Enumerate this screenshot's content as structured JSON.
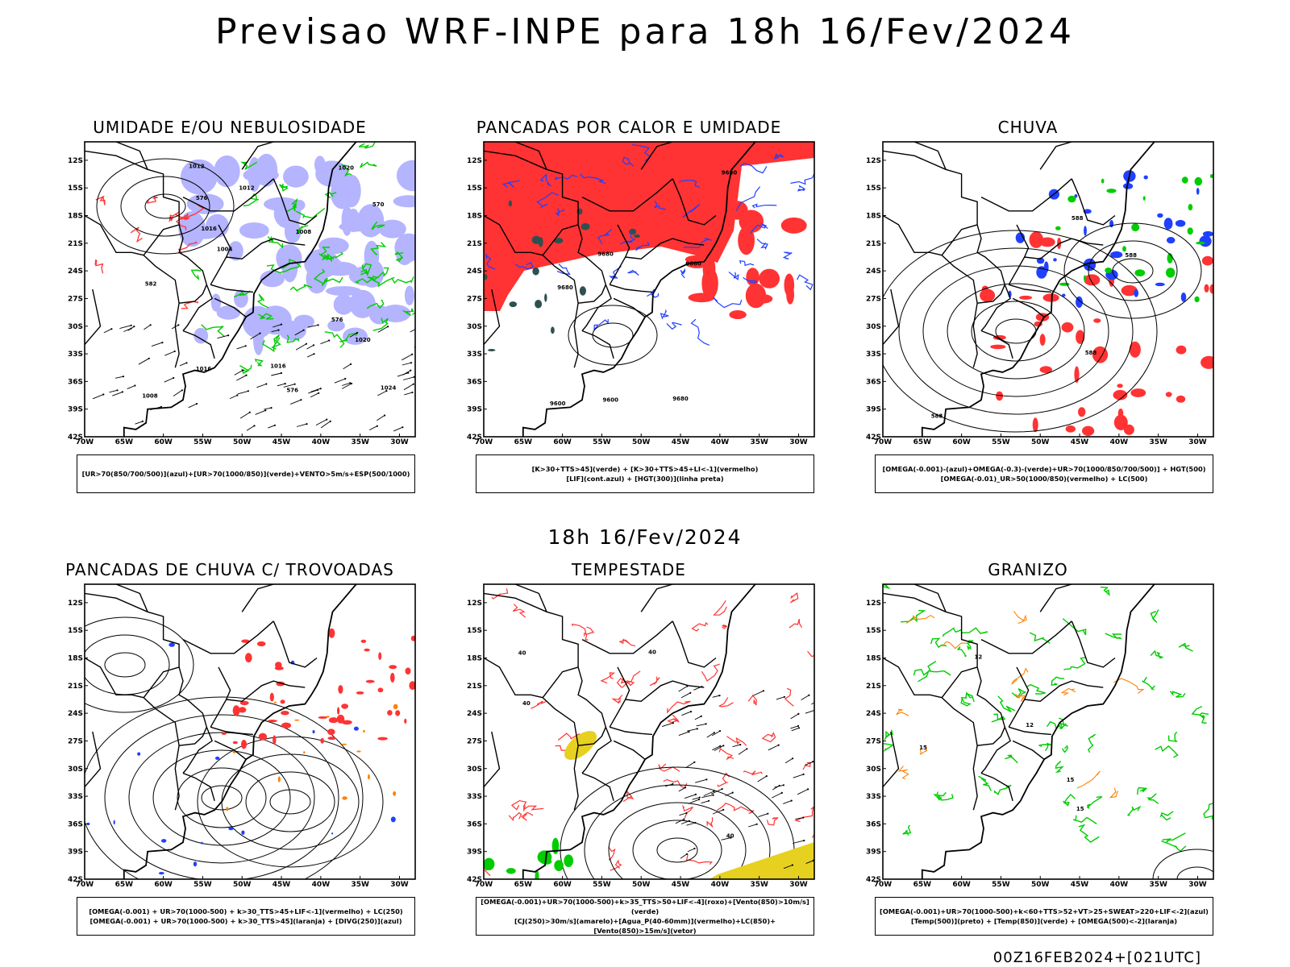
{
  "title": "Previsao WRF-INPE  para 18h 16/Fev/2024",
  "mid_title": "18h 16/Fev/2024",
  "footer": "00Z16FEB2024+[021UTC]",
  "lat_labels": [
    "12S",
    "15S",
    "18S",
    "21S",
    "24S",
    "27S",
    "30S",
    "33S",
    "36S",
    "39S",
    "42S"
  ],
  "lon_labels": [
    "70W",
    "65W",
    "60W",
    "55W",
    "50W",
    "45W",
    "40W",
    "35W",
    "30W"
  ],
  "panels": [
    {
      "title": "UMIDADE E/OU NEBULOSIDADE",
      "legend": [
        "[UR>70(850/700/500)](azul)+[UR>70(1000/850)](verde)+VENTO>5m/s+ESP(500/1000)"
      ],
      "labels": [
        "1008",
        "1012",
        "1012",
        "1016",
        "1016",
        "1016",
        "1020",
        "1020",
        "1024",
        "576",
        "576",
        "576",
        "570",
        "582",
        "1004",
        "1008"
      ]
    },
    {
      "title": "PANCADAS POR CALOR E UMIDADE",
      "legend": [
        "[K>30+TTS>45](verde) + [K>30+TTS>45+LI<-1](vermelho)",
        "[LIF](cont.azul) + [HGT(300)](linha preta)"
      ],
      "labels": [
        "9680",
        "9680",
        "9680",
        "9680",
        "9600",
        "9600",
        "9680"
      ]
    },
    {
      "title": "CHUVA",
      "legend": [
        "[OMEGA(-0.001)-(azul)+OMEGA(-0.3)-(verde)+UR>70(1000/850/700/500)] + HGT(500)",
        "[OMEGA(-0.01)_UR>50(1000/850)(vermelho) + LC(500)"
      ],
      "labels": [
        "588",
        "588",
        "588",
        "588"
      ]
    },
    {
      "title": "PANCADAS DE CHUVA C/ TROVOADAS",
      "legend": [
        "[OMEGA(-0.001) + UR>70(1000-500) + k>30_TTS>45+LIF<-1](vermelho) + LC(250)",
        "[OMEGA(-0.001) + UR>70(1000-500) + k>30_TTS>45](laranja) + [DIVG(250)](azul)"
      ],
      "labels": []
    },
    {
      "title": "TEMPESTADE",
      "legend": [
        "[OMEGA(-0.001)+UR>70(1000-500)+k>35_TTS>50+LIF<-4](roxo)+[Vento(850)>10m/s](verde)",
        "[CJ(250)>30m/s](amarelo)+[Agua_P(40-60mm)](vermelho)+LC(850)+[Vento(850)>15m/s](vetor)"
      ],
      "labels": [
        "40",
        "40",
        "40",
        "40"
      ]
    },
    {
      "title": "GRANIZO",
      "legend": [
        "[OMEGA(-0.001)+UR>70(1000-500)+k<60+TTS>52+VT>25+SWEAT>220+LIF<-2](azul)",
        "[Temp(500)](preto) + [Temp(850)](verde) + [OMEGA(500)<-2](laranja)"
      ],
      "labels": [
        "15",
        "15",
        "12",
        "12",
        "15"
      ]
    }
  ],
  "colors": {
    "map_border": "#000000",
    "humidity_blue": "#b4b4ff",
    "rh_green": "#00cc00",
    "red": "#ff3333",
    "blue": "#2040ff",
    "dark_green": "#2f5050",
    "orange": "#ff8000",
    "yellow": "#e6d020"
  }
}
